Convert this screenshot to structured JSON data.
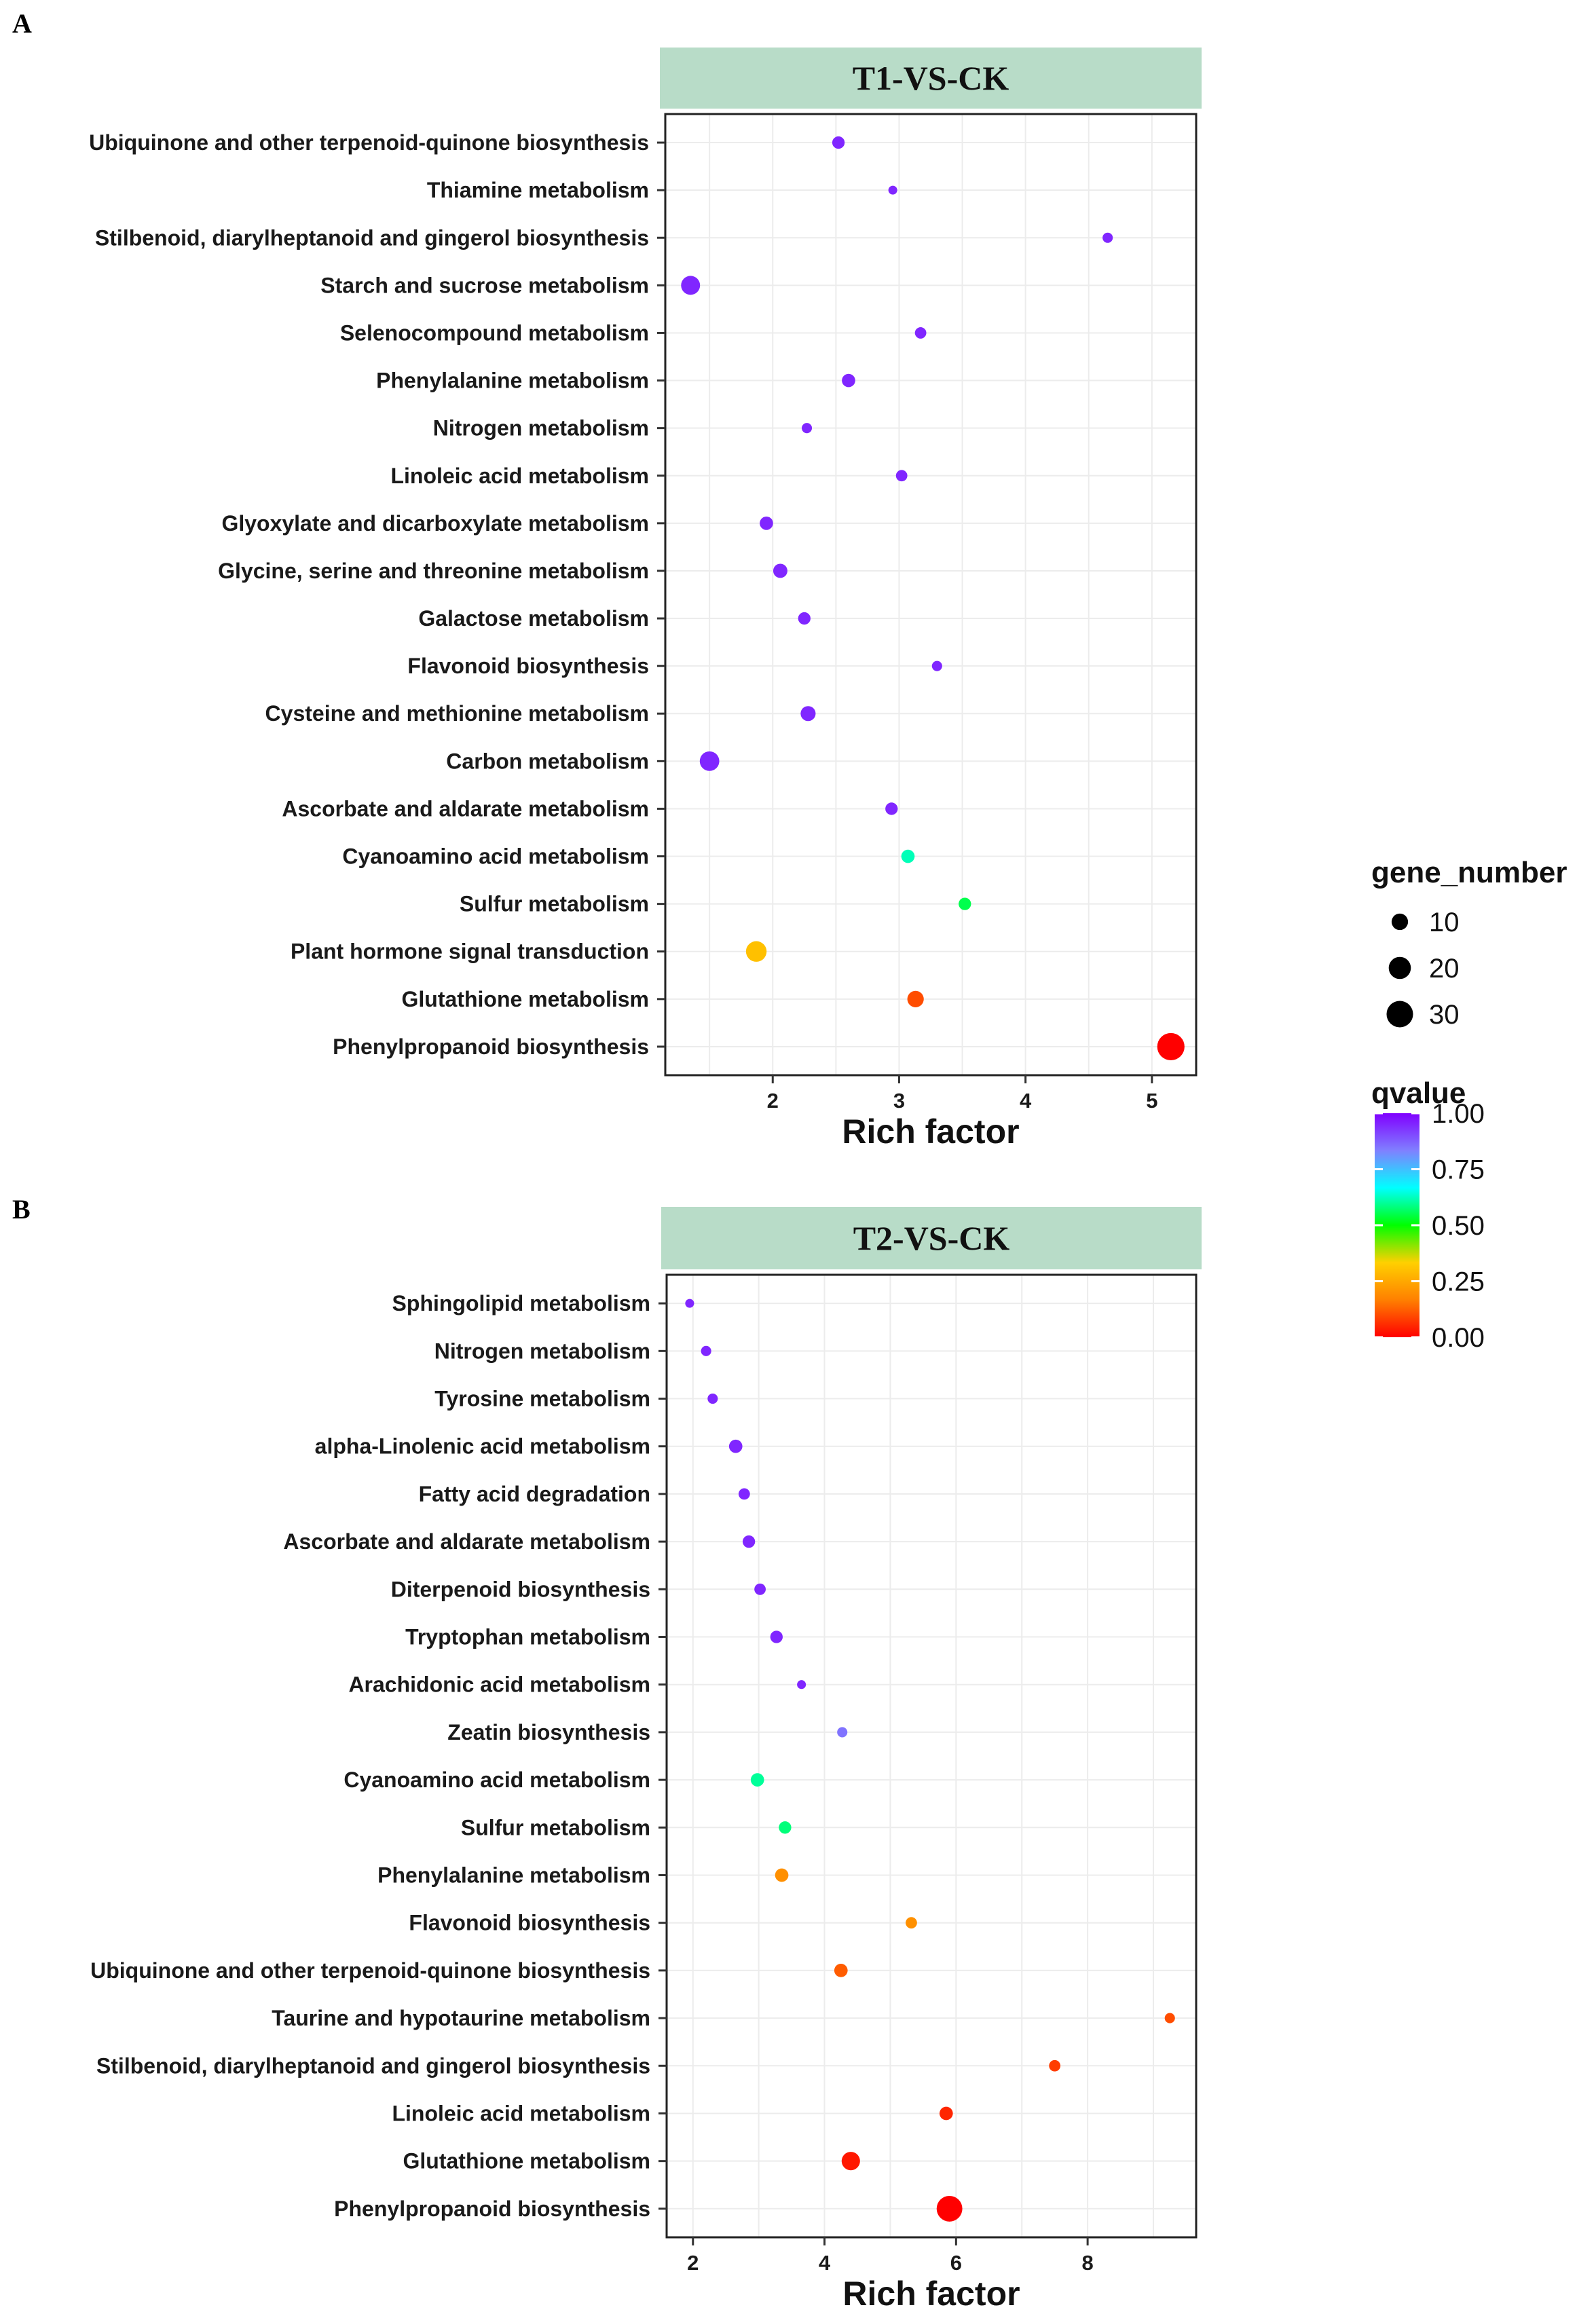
{
  "chart_data": [
    {
      "type": "scatter",
      "panel_label": "A",
      "title": "T1-VS-CK",
      "xlabel": "Rich factor",
      "ylabel": "",
      "xlim": [
        1.15,
        5.35
      ],
      "xticks": [
        2,
        3,
        4,
        5
      ],
      "categories": [
        "Phenylpropanoid biosynthesis",
        "Glutathione metabolism",
        "Plant hormone signal transduction",
        "Sulfur metabolism",
        "Cyanoamino acid metabolism",
        "Ascorbate and aldarate metabolism",
        "Carbon metabolism",
        "Cysteine and methionine metabolism",
        "Flavonoid biosynthesis",
        "Galactose metabolism",
        "Glycine, serine and threonine metabolism",
        "Glyoxylate and dicarboxylate metabolism",
        "Linoleic acid metabolism",
        "Nitrogen metabolism",
        "Phenylalanine metabolism",
        "Selenocompound metabolism",
        "Starch and sucrose metabolism",
        "Stilbenoid, diarylheptanoid and gingerol biosynthesis",
        "Thiamine metabolism",
        "Ubiquinone and other terpenoid-quinone biosynthesis"
      ],
      "points": [
        {
          "category": "Phenylpropanoid biosynthesis",
          "rich_factor": 5.15,
          "gene_number": 32,
          "qvalue": 0.0
        },
        {
          "category": "Glutathione metabolism",
          "rich_factor": 3.13,
          "gene_number": 10,
          "qvalue": 0.1
        },
        {
          "category": "Plant hormone signal transduction",
          "rich_factor": 1.87,
          "gene_number": 17,
          "qvalue": 0.3
        },
        {
          "category": "Sulfur metabolism",
          "rich_factor": 3.52,
          "gene_number": 5,
          "qvalue": 0.55
        },
        {
          "category": "Cyanoamino acid metabolism",
          "rich_factor": 3.07,
          "gene_number": 6,
          "qvalue": 0.62
        },
        {
          "category": "Ascorbate and aldarate metabolism",
          "rich_factor": 2.94,
          "gene_number": 5,
          "qvalue": 0.95
        },
        {
          "category": "Carbon metabolism",
          "rich_factor": 1.5,
          "gene_number": 15,
          "qvalue": 0.95
        },
        {
          "category": "Cysteine and methionine metabolism",
          "rich_factor": 2.28,
          "gene_number": 8,
          "qvalue": 0.95
        },
        {
          "category": "Flavonoid biosynthesis",
          "rich_factor": 3.3,
          "gene_number": 3,
          "qvalue": 0.95
        },
        {
          "category": "Galactose metabolism",
          "rich_factor": 2.25,
          "gene_number": 5,
          "qvalue": 0.95
        },
        {
          "category": "Glycine, serine and threonine metabolism",
          "rich_factor": 2.06,
          "gene_number": 7,
          "qvalue": 0.95
        },
        {
          "category": "Glyoxylate and dicarboxylate metabolism",
          "rich_factor": 1.95,
          "gene_number": 6,
          "qvalue": 0.95
        },
        {
          "category": "Linoleic acid metabolism",
          "rich_factor": 3.02,
          "gene_number": 4,
          "qvalue": 0.95
        },
        {
          "category": "Nitrogen metabolism",
          "rich_factor": 2.27,
          "gene_number": 3,
          "qvalue": 0.95
        },
        {
          "category": "Phenylalanine metabolism",
          "rich_factor": 2.6,
          "gene_number": 6,
          "qvalue": 0.95
        },
        {
          "category": "Selenocompound metabolism",
          "rich_factor": 3.17,
          "gene_number": 4,
          "qvalue": 0.95
        },
        {
          "category": "Starch and sucrose metabolism",
          "rich_factor": 1.35,
          "gene_number": 14,
          "qvalue": 0.95
        },
        {
          "category": "Stilbenoid, diarylheptanoid and gingerol biosynthesis",
          "rich_factor": 4.65,
          "gene_number": 3,
          "qvalue": 0.95
        },
        {
          "category": "Thiamine metabolism",
          "rich_factor": 2.95,
          "gene_number": 2,
          "qvalue": 0.95
        },
        {
          "category": "Ubiquinone and other terpenoid-quinone biosynthesis",
          "rich_factor": 2.52,
          "gene_number": 5,
          "qvalue": 0.95
        }
      ]
    },
    {
      "type": "scatter",
      "panel_label": "B",
      "title": "T2-VS-CK",
      "xlabel": "Rich factor",
      "ylabel": "",
      "xlim": [
        1.6,
        9.65
      ],
      "xticks": [
        2,
        4,
        6,
        8
      ],
      "categories": [
        "Phenylpropanoid biosynthesis",
        "Glutathione metabolism",
        "Linoleic acid metabolism",
        "Stilbenoid, diarylheptanoid and gingerol biosynthesis",
        "Taurine and hypotaurine metabolism",
        "Ubiquinone and other terpenoid-quinone biosynthesis",
        "Flavonoid biosynthesis",
        "Phenylalanine metabolism",
        "Sulfur metabolism",
        "Cyanoamino acid metabolism",
        "Zeatin biosynthesis",
        "Arachidonic acid metabolism",
        "Tryptophan metabolism",
        "Diterpenoid biosynthesis",
        "Ascorbate and aldarate metabolism",
        "Fatty acid degradation",
        "alpha-Linolenic acid metabolism",
        "Tyrosine metabolism",
        "Nitrogen metabolism",
        "Sphingolipid metabolism"
      ],
      "points": [
        {
          "category": "Phenylpropanoid biosynthesis",
          "rich_factor": 5.9,
          "gene_number": 28,
          "qvalue": 0.0
        },
        {
          "category": "Glutathione metabolism",
          "rich_factor": 4.4,
          "gene_number": 13,
          "qvalue": 0.03
        },
        {
          "category": "Linoleic acid metabolism",
          "rich_factor": 5.85,
          "gene_number": 6,
          "qvalue": 0.05
        },
        {
          "category": "Stilbenoid, diarylheptanoid and gingerol biosynthesis",
          "rich_factor": 7.5,
          "gene_number": 4,
          "qvalue": 0.08
        },
        {
          "category": "Taurine and hypotaurine metabolism",
          "rich_factor": 9.25,
          "gene_number": 3,
          "qvalue": 0.1
        },
        {
          "category": "Ubiquinone and other terpenoid-quinone biosynthesis",
          "rich_factor": 4.25,
          "gene_number": 6,
          "qvalue": 0.12
        },
        {
          "category": "Flavonoid biosynthesis",
          "rich_factor": 5.32,
          "gene_number": 4,
          "qvalue": 0.2
        },
        {
          "category": "Phenylalanine metabolism",
          "rich_factor": 3.35,
          "gene_number": 6,
          "qvalue": 0.2
        },
        {
          "category": "Sulfur metabolism",
          "rich_factor": 3.4,
          "gene_number": 5,
          "qvalue": 0.58
        },
        {
          "category": "Cyanoamino acid metabolism",
          "rich_factor": 2.98,
          "gene_number": 6,
          "qvalue": 0.6
        },
        {
          "category": "Zeatin biosynthesis",
          "rich_factor": 4.27,
          "gene_number": 3,
          "qvalue": 0.85
        },
        {
          "category": "Arachidonic acid metabolism",
          "rich_factor": 3.65,
          "gene_number": 2,
          "qvalue": 0.95
        },
        {
          "category": "Tryptophan metabolism",
          "rich_factor": 3.27,
          "gene_number": 5,
          "qvalue": 0.95
        },
        {
          "category": "Diterpenoid biosynthesis",
          "rich_factor": 3.02,
          "gene_number": 4,
          "qvalue": 0.95
        },
        {
          "category": "Ascorbate and aldarate metabolism",
          "rich_factor": 2.85,
          "gene_number": 5,
          "qvalue": 0.95
        },
        {
          "category": "Fatty acid degradation",
          "rich_factor": 2.78,
          "gene_number": 4,
          "qvalue": 0.95
        },
        {
          "category": "alpha-Linolenic acid metabolism",
          "rich_factor": 2.65,
          "gene_number": 6,
          "qvalue": 0.95
        },
        {
          "category": "Tyrosine metabolism",
          "rich_factor": 2.3,
          "gene_number": 3,
          "qvalue": 0.95
        },
        {
          "category": "Nitrogen metabolism",
          "rich_factor": 2.2,
          "gene_number": 3,
          "qvalue": 0.95
        },
        {
          "category": "Sphingolipid metabolism",
          "rich_factor": 1.95,
          "gene_number": 2,
          "qvalue": 0.95
        }
      ]
    }
  ],
  "legend": {
    "size_title": "gene_number",
    "size_entries": [
      {
        "label": "10",
        "value": 10
      },
      {
        "label": "20",
        "value": 20
      },
      {
        "label": "30",
        "value": 30
      }
    ],
    "color_title": "qvalue",
    "color_ticks": [
      {
        "label": "1.00",
        "value": 1.0
      },
      {
        "label": "0.75",
        "value": 0.75
      },
      {
        "label": "0.50",
        "value": 0.5
      },
      {
        "label": "0.25",
        "value": 0.25
      },
      {
        "label": "0.00",
        "value": 0.0
      }
    ],
    "color_stops": [
      "#ff0000",
      "#ff8000",
      "#ffd000",
      "#00ff00",
      "#00ffff",
      "#8080ff",
      "#8000ff"
    ],
    "strip_color": "#b8dcc8"
  }
}
